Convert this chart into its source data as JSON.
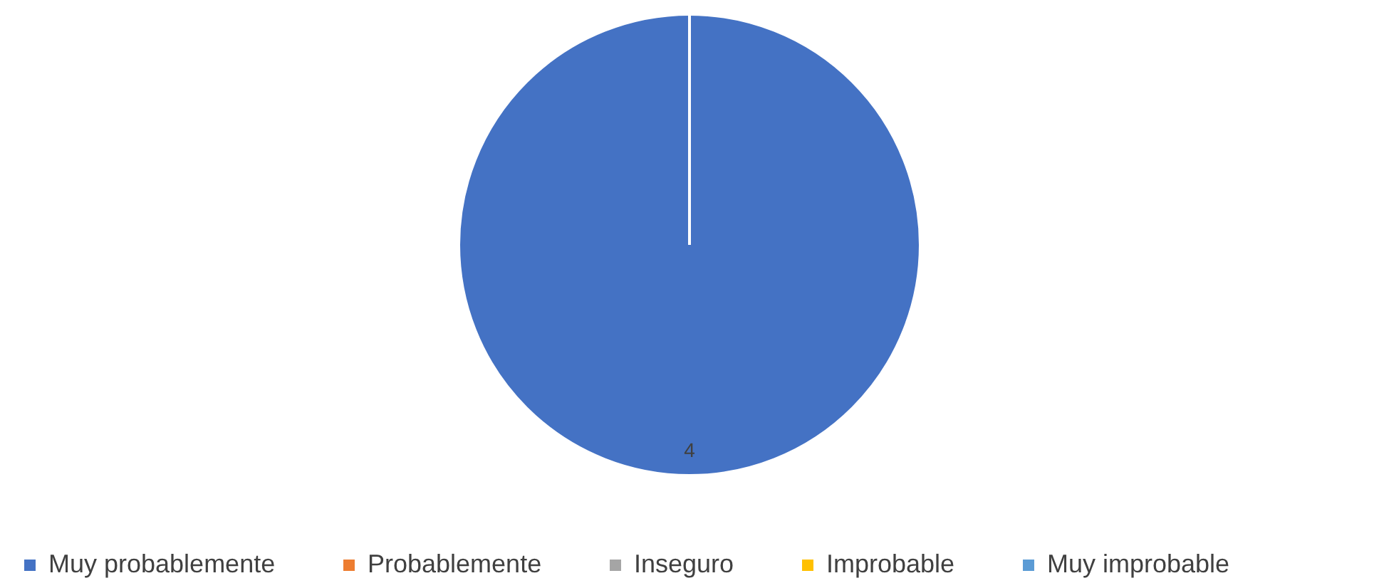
{
  "chart_data": {
    "type": "pie",
    "categories": [
      "Muy probablemente",
      "Probablemente",
      "Inseguro",
      "Improbable",
      "Muy improbable"
    ],
    "values": [
      4,
      0,
      0,
      0,
      0
    ],
    "colors": [
      "#4472c4",
      "#ed7d31",
      "#a5a5a5",
      "#ffc000",
      "#5b9bd5"
    ],
    "value_labels": [
      "4",
      null,
      null,
      null,
      null
    ],
    "legend": "bottom"
  }
}
